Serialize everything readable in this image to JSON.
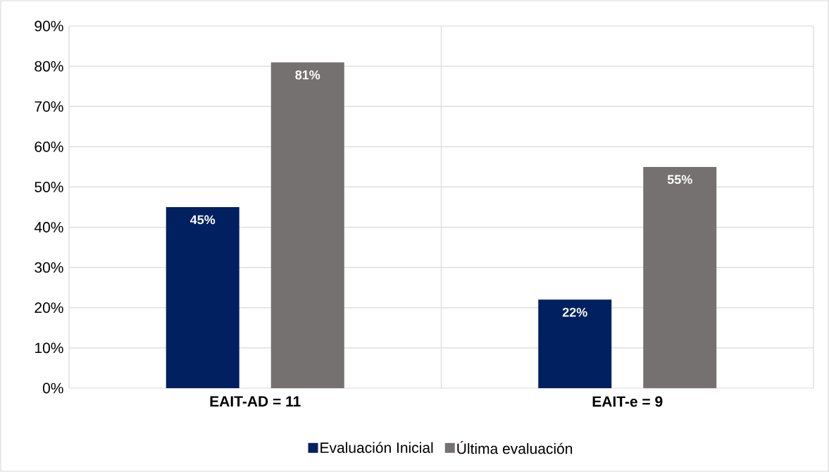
{
  "chart_data": {
    "type": "bar",
    "categories": [
      "EAIT-AD = 11",
      "EAIT-e = 9"
    ],
    "series": [
      {
        "name": "Evaluación Inicial",
        "color": "#002060",
        "values": [
          45,
          22
        ],
        "value_labels": [
          "45%",
          "22%"
        ]
      },
      {
        "name": "Última evaluación",
        "color": "#767171",
        "values": [
          81,
          55
        ],
        "value_labels": [
          "81%",
          "55%"
        ]
      }
    ],
    "ylim": [
      0,
      90
    ],
    "yticks": [
      {
        "value": 0,
        "label": "0%"
      },
      {
        "value": 10,
        "label": "10%"
      },
      {
        "value": 20,
        "label": "20%"
      },
      {
        "value": 30,
        "label": "30%"
      },
      {
        "value": 40,
        "label": "40%"
      },
      {
        "value": 50,
        "label": "50%"
      },
      {
        "value": 60,
        "label": "60%"
      },
      {
        "value": 70,
        "label": "70%"
      },
      {
        "value": 80,
        "label": "80%"
      },
      {
        "value": 90,
        "label": "90%"
      }
    ],
    "grid": true,
    "legend": "bottom"
  }
}
